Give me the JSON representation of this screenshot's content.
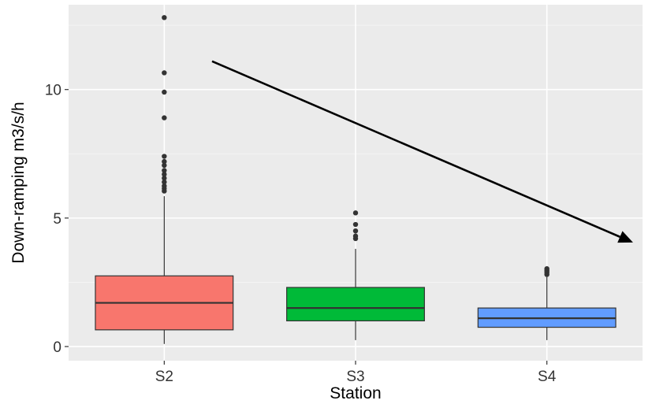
{
  "chart_data": {
    "type": "boxplot",
    "xlabel": "Station",
    "ylabel": "Down-ramping m3/s/h",
    "ylim": [
      -0.55,
      13.3
    ],
    "yticks": [
      0,
      5,
      10
    ],
    "grid": true,
    "legend": "none",
    "categories": [
      "S2",
      "S3",
      "S4"
    ],
    "boxes": [
      {
        "category": "S2",
        "color": "#F8766D",
        "whisker_low": 0.1,
        "q1": 0.65,
        "median": 1.7,
        "q3": 2.75,
        "whisker_high": 5.85,
        "outliers": [
          6.05,
          6.15,
          6.25,
          6.4,
          6.55,
          6.7,
          6.85,
          7.05,
          7.2,
          7.4,
          8.9,
          9.9,
          10.65,
          12.8
        ]
      },
      {
        "category": "S3",
        "color": "#00BA38",
        "whisker_low": 0.25,
        "q1": 1.0,
        "median": 1.5,
        "q3": 2.3,
        "whisker_high": 3.8,
        "outliers": [
          4.2,
          4.3,
          4.5,
          4.75,
          5.2
        ]
      },
      {
        "category": "S4",
        "color": "#619CFF",
        "whisker_low": 0.25,
        "q1": 0.75,
        "median": 1.1,
        "q3": 1.5,
        "whisker_high": 2.7,
        "outliers": [
          2.8,
          2.87,
          2.92,
          2.97,
          3.03
        ]
      }
    ],
    "annotation": {
      "type": "arrow",
      "from": {
        "x": 0.25,
        "y": 11.1
      },
      "to": {
        "x": 2.45,
        "y": 4.05
      },
      "color": "#000000"
    }
  }
}
